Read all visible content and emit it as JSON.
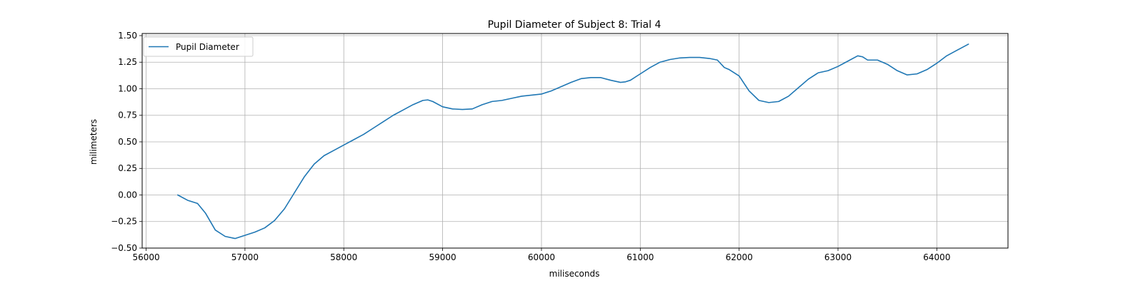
{
  "chart_data": {
    "type": "line",
    "title": "Pupil Diameter of Subject 8: Trial 4",
    "xlabel": "miliseconds",
    "ylabel": "milimeters",
    "xlim": [
      55960,
      64720
    ],
    "ylim": [
      -0.5,
      1.52
    ],
    "xticks": [
      56000,
      57000,
      58000,
      59000,
      60000,
      61000,
      62000,
      63000,
      64000
    ],
    "yticks": [
      -0.5,
      -0.25,
      0.0,
      0.25,
      0.5,
      0.75,
      1.0,
      1.25,
      1.5
    ],
    "xtick_labels": [
      "56000",
      "57000",
      "58000",
      "59000",
      "60000",
      "61000",
      "62000",
      "63000",
      "64000"
    ],
    "ytick_labels": [
      "−0.50",
      "−0.25",
      "0.00",
      "0.25",
      "0.50",
      "0.75",
      "1.00",
      "1.25",
      "1.50"
    ],
    "grid": true,
    "legend_position": "upper-left",
    "series": [
      {
        "name": "Pupil Diameter",
        "color": "#1f77b4",
        "x": [
          56320,
          56420,
          56520,
          56600,
          56700,
          56800,
          56900,
          57000,
          57100,
          57200,
          57300,
          57400,
          57500,
          57600,
          57700,
          57800,
          57900,
          58000,
          58100,
          58200,
          58300,
          58400,
          58500,
          58600,
          58700,
          58800,
          58850,
          58900,
          59000,
          59100,
          59200,
          59300,
          59400,
          59500,
          59600,
          59700,
          59800,
          59900,
          60000,
          60100,
          60200,
          60300,
          60400,
          60450,
          60500,
          60600,
          60700,
          60800,
          60850,
          60900,
          61000,
          61100,
          61200,
          61300,
          61400,
          61500,
          61600,
          61700,
          61780,
          61850,
          61900,
          62000,
          62100,
          62200,
          62300,
          62400,
          62500,
          62600,
          62700,
          62800,
          62900,
          63000,
          63100,
          63200,
          63250,
          63300,
          63400,
          63500,
          63600,
          63700,
          63800,
          63900,
          64000,
          64100,
          64200,
          64320
        ],
        "y": [
          0.0,
          -0.05,
          -0.08,
          -0.17,
          -0.33,
          -0.39,
          -0.41,
          -0.38,
          -0.35,
          -0.31,
          -0.24,
          -0.13,
          0.02,
          0.17,
          0.29,
          0.37,
          0.42,
          0.47,
          0.52,
          0.57,
          0.63,
          0.69,
          0.75,
          0.8,
          0.85,
          0.89,
          0.895,
          0.88,
          0.83,
          0.81,
          0.805,
          0.81,
          0.85,
          0.88,
          0.89,
          0.91,
          0.93,
          0.94,
          0.95,
          0.98,
          1.02,
          1.06,
          1.095,
          1.1,
          1.105,
          1.105,
          1.08,
          1.06,
          1.065,
          1.08,
          1.14,
          1.2,
          1.25,
          1.275,
          1.29,
          1.295,
          1.295,
          1.285,
          1.27,
          1.2,
          1.18,
          1.12,
          0.98,
          0.89,
          0.87,
          0.88,
          0.93,
          1.01,
          1.09,
          1.15,
          1.17,
          1.21,
          1.26,
          1.31,
          1.3,
          1.27,
          1.27,
          1.23,
          1.17,
          1.13,
          1.14,
          1.18,
          1.24,
          1.31,
          1.36,
          1.42
        ]
      }
    ]
  }
}
